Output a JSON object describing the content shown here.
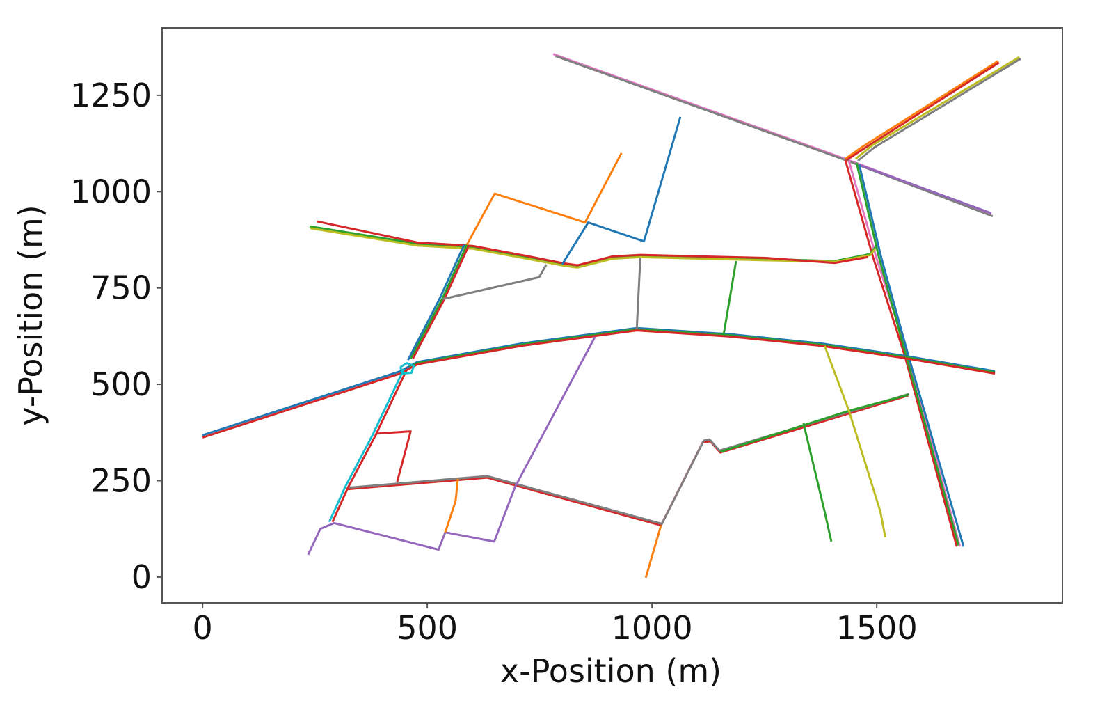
{
  "chart_data": {
    "type": "line",
    "title": "",
    "xlabel": "x-Position (m)",
    "ylabel": "y-Position (m)",
    "xlim": [
      -90,
      1913
    ],
    "ylim": [
      -67,
      1425
    ],
    "xticks": [
      0,
      500,
      1000,
      1500
    ],
    "yticks": [
      0,
      250,
      500,
      750,
      1000,
      1250
    ],
    "xtick_labels": [
      "0",
      "500",
      "1000",
      "1500"
    ],
    "ytick_labels": [
      "0",
      "250",
      "500",
      "750",
      "1000",
      "1250"
    ],
    "grid": false,
    "legend": "none",
    "series": [
      {
        "color": "#e377c2",
        "points": [
          [
            780,
            1357
          ],
          [
            1430,
            1085
          ],
          [
            1755,
            941
          ]
        ]
      },
      {
        "color": "#7f7f7f",
        "points": [
          [
            785,
            1352
          ],
          [
            1435,
            1080
          ],
          [
            1758,
            936
          ]
        ]
      },
      {
        "color": "#9467bd",
        "points": [
          [
            1460,
            1070
          ],
          [
            1755,
            944
          ]
        ]
      },
      {
        "color": "#ff7f0e",
        "points": [
          [
            1430,
            1085
          ],
          [
            1469,
            1117
          ],
          [
            1770,
            1339
          ]
        ]
      },
      {
        "color": "#d62728",
        "points": [
          [
            1433,
            1082
          ],
          [
            1472,
            1112
          ],
          [
            1772,
            1335
          ]
        ]
      },
      {
        "color": "#bcbd22",
        "points": [
          [
            1453,
            1085
          ],
          [
            1490,
            1120
          ],
          [
            1817,
            1349
          ]
        ]
      },
      {
        "color": "#7f7f7f",
        "points": [
          [
            1458,
            1080
          ],
          [
            1495,
            1115
          ],
          [
            1820,
            1345
          ]
        ]
      },
      {
        "color": "#d62728",
        "points": [
          [
            1430,
            1082
          ],
          [
            1492,
            829
          ],
          [
            1562,
            576
          ],
          [
            1678,
            79
          ]
        ]
      },
      {
        "color": "#e377c2",
        "points": [
          [
            1438,
            1080
          ],
          [
            1499,
            829
          ],
          [
            1569,
            576
          ],
          [
            1685,
            79
          ]
        ]
      },
      {
        "color": "#1f77b4",
        "points": [
          [
            1461,
            1070
          ],
          [
            1510,
            829
          ],
          [
            1570,
            576
          ],
          [
            1693,
            79
          ]
        ]
      },
      {
        "color": "#2ca02c",
        "points": [
          [
            1455,
            1075
          ],
          [
            1505,
            829
          ],
          [
            1565,
            576
          ],
          [
            1682,
            82
          ]
        ]
      },
      {
        "color": "#2ca02c",
        "points": [
          [
            238,
            910
          ],
          [
            478,
            865
          ],
          [
            602,
            856
          ],
          [
            726,
            829
          ],
          [
            803,
            811
          ],
          [
            834,
            806
          ],
          [
            912,
            829
          ],
          [
            974,
            833
          ],
          [
            1252,
            825
          ],
          [
            1407,
            820
          ],
          [
            1485,
            838
          ],
          [
            1497,
            856
          ]
        ]
      },
      {
        "color": "#bcbd22",
        "points": [
          [
            240,
            905
          ],
          [
            478,
            860
          ],
          [
            602,
            852
          ],
          [
            726,
            825
          ],
          [
            803,
            808
          ],
          [
            834,
            803
          ],
          [
            912,
            826
          ],
          [
            974,
            830
          ],
          [
            1252,
            822
          ],
          [
            1407,
            818
          ],
          [
            1485,
            835
          ],
          [
            1497,
            852
          ]
        ]
      },
      {
        "color": "#d62728",
        "points": [
          [
            254,
            923
          ],
          [
            478,
            868
          ],
          [
            602,
            859
          ],
          [
            726,
            832
          ],
          [
            803,
            814
          ],
          [
            834,
            809
          ],
          [
            912,
            832
          ],
          [
            974,
            836
          ],
          [
            1252,
            828
          ],
          [
            1407,
            815
          ],
          [
            1480,
            830
          ]
        ]
      },
      {
        "color": "#1f77b4",
        "points": [
          [
            0,
            368
          ],
          [
            440,
            534
          ],
          [
            478,
            558
          ],
          [
            710,
            606
          ],
          [
            966,
            646
          ],
          [
            1175,
            630
          ],
          [
            1376,
            606
          ],
          [
            1562,
            574
          ],
          [
            1763,
            534
          ]
        ]
      },
      {
        "color": "#2ca02c",
        "points": [
          [
            460,
            545
          ],
          [
            478,
            555
          ],
          [
            710,
            603
          ],
          [
            966,
            643
          ],
          [
            1175,
            627
          ],
          [
            1376,
            603
          ],
          [
            1562,
            571
          ],
          [
            1763,
            531
          ]
        ]
      },
      {
        "color": "#d62728",
        "points": [
          [
            0,
            362
          ],
          [
            440,
            528
          ],
          [
            478,
            552
          ],
          [
            710,
            600
          ],
          [
            966,
            640
          ],
          [
            1175,
            624
          ],
          [
            1376,
            600
          ],
          [
            1562,
            568
          ],
          [
            1763,
            528
          ]
        ]
      },
      {
        "color": "#d62728",
        "points": [
          [
            324,
            228
          ],
          [
            633,
            258
          ],
          [
            1020,
            134
          ],
          [
            1113,
            350
          ],
          [
            1130,
            352
          ],
          [
            1152,
            323
          ],
          [
            1570,
            471
          ]
        ]
      },
      {
        "color": "#7f7f7f",
        "points": [
          [
            326,
            232
          ],
          [
            633,
            262
          ],
          [
            1022,
            138
          ],
          [
            1115,
            354
          ],
          [
            1128,
            357
          ],
          [
            1150,
            328
          ],
          [
            1572,
            475
          ]
        ]
      },
      {
        "color": "#2ca02c",
        "points": [
          [
            1152,
            325
          ],
          [
            1440,
            432
          ],
          [
            1571,
            473
          ]
        ]
      },
      {
        "color": "#2ca02c",
        "points": [
          [
            463,
            567
          ],
          [
            533,
            721
          ],
          [
            588,
            862
          ]
        ]
      },
      {
        "color": "#1f77b4",
        "points": [
          [
            457,
            563
          ],
          [
            527,
            721
          ],
          [
            582,
            862
          ]
        ]
      },
      {
        "color": "#d62728",
        "points": [
          [
            468,
            567
          ],
          [
            538,
            721
          ],
          [
            593,
            862
          ]
        ]
      },
      {
        "color": "#ff7f0e",
        "points": [
          [
            588,
            862
          ],
          [
            650,
            995
          ],
          [
            851,
            920
          ],
          [
            932,
            1100
          ]
        ]
      },
      {
        "color": "#1f77b4",
        "points": [
          [
            800,
            811
          ],
          [
            858,
            920
          ],
          [
            982,
            871
          ],
          [
            1063,
            1194
          ]
        ]
      },
      {
        "color": "#d62728",
        "points": [
          [
            455,
            540
          ],
          [
            385,
            368
          ],
          [
            324,
            233
          ],
          [
            289,
            143
          ]
        ]
      },
      {
        "color": "#17becf",
        "points": [
          [
            448,
            540
          ],
          [
            378,
            368
          ],
          [
            317,
            233
          ],
          [
            282,
            143
          ]
        ]
      },
      {
        "color": "#7f7f7f",
        "points": [
          [
            534,
            721
          ],
          [
            749,
            778
          ],
          [
            765,
            811
          ]
        ]
      },
      {
        "color": "#d62728",
        "points": [
          [
            385,
            372
          ],
          [
            463,
            378
          ],
          [
            433,
            247
          ]
        ]
      },
      {
        "color": "#9467bd",
        "points": [
          [
            235,
            58
          ],
          [
            262,
            125
          ],
          [
            293,
            140
          ],
          [
            525,
            71
          ],
          [
            540,
            116
          ],
          [
            649,
            92
          ],
          [
            695,
            233
          ],
          [
            873,
            623
          ]
        ]
      },
      {
        "color": "#ff7f0e",
        "points": [
          [
            540,
            116
          ],
          [
            563,
            197
          ],
          [
            568,
            255
          ]
        ]
      },
      {
        "color": "#ff7f0e",
        "points": [
          [
            1020,
            134
          ],
          [
            986,
            -2
          ]
        ]
      },
      {
        "color": "#7f7f7f",
        "points": [
          [
            966,
            643
          ],
          [
            974,
            829
          ]
        ]
      },
      {
        "color": "#2ca02c",
        "points": [
          [
            1159,
            627
          ],
          [
            1187,
            820
          ]
        ]
      },
      {
        "color": "#bcbd22",
        "points": [
          [
            1384,
            600
          ],
          [
            1438,
            432
          ],
          [
            1508,
            170
          ],
          [
            1519,
            103
          ]
        ]
      },
      {
        "color": "#2ca02c",
        "points": [
          [
            1337,
            399
          ],
          [
            1384,
            170
          ],
          [
            1399,
            92
          ]
        ]
      },
      {
        "color": "#17becf",
        "points": [
          [
            440,
            545
          ],
          [
            455,
            555
          ],
          [
            470,
            548
          ],
          [
            465,
            530
          ],
          [
            445,
            528
          ],
          [
            440,
            545
          ]
        ]
      }
    ]
  }
}
